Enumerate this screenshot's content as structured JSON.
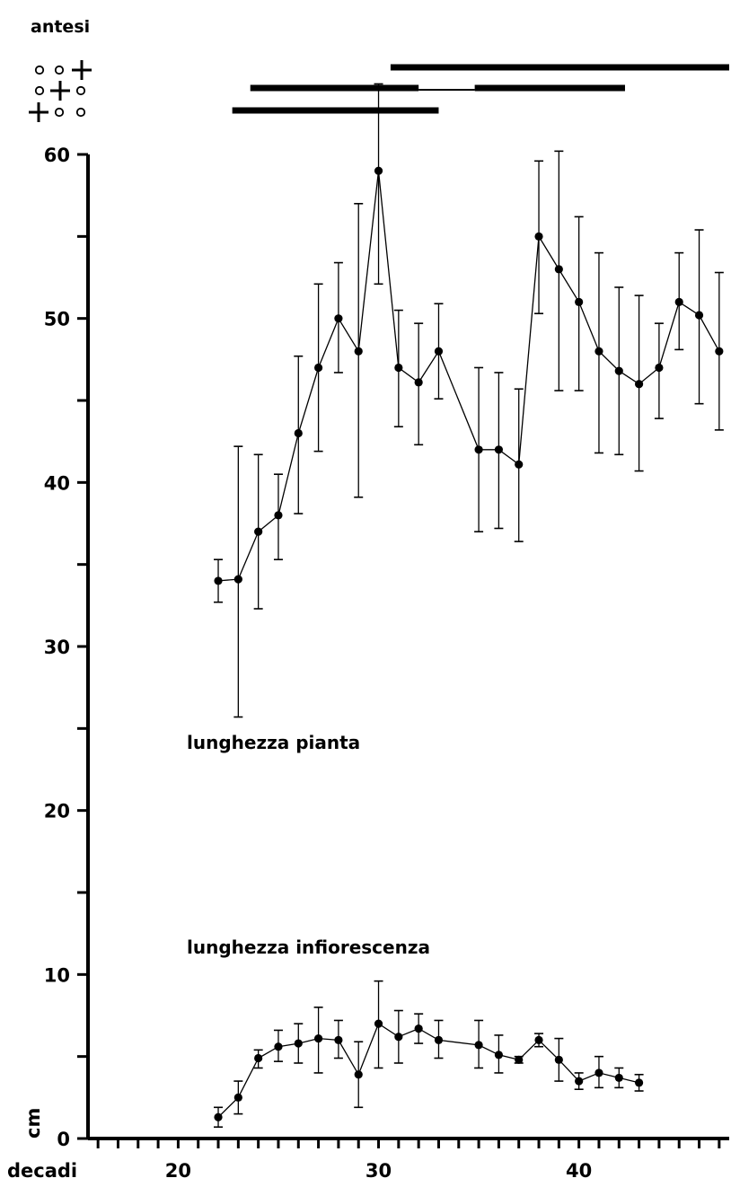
{
  "chart_data": {
    "type": "line",
    "title": "",
    "xlabel": "decadi",
    "ylabel": "cm",
    "corner_label": "antesi",
    "x_range": [
      15.5,
      47.5
    ],
    "y_range": [
      0,
      60
    ],
    "x_ticks": [
      20,
      30,
      40
    ],
    "y_ticks": [
      0,
      10,
      20,
      30,
      40,
      50,
      60
    ],
    "y_minor_step": 5,
    "x_minor_step": 1,
    "anthesis_symbols": [
      "o o+",
      "o+o",
      "+o o"
    ],
    "anthesis_periods": [
      {
        "rows": "top",
        "start": 30.6,
        "end": 47.5
      },
      {
        "rows": "middle",
        "start": 23.6,
        "end": 42.3,
        "gap": [
          32.0,
          34.8
        ]
      },
      {
        "rows": "bottom",
        "start": 22.7,
        "end": 33.0
      }
    ],
    "series": [
      {
        "name": "lunghezza pianta",
        "x": [
          22,
          23,
          24,
          25,
          26,
          27,
          28,
          29,
          30,
          31,
          32,
          33,
          35,
          36,
          37,
          38,
          39,
          40,
          41,
          42,
          43,
          44,
          45,
          46,
          47
        ],
        "y": [
          34,
          34.1,
          37,
          38,
          43,
          47,
          50,
          48,
          59,
          47,
          46.1,
          48,
          42,
          42,
          41.1,
          55,
          53,
          51,
          48,
          46.8,
          46,
          47,
          51,
          50.2,
          48
        ],
        "low": [
          32.7,
          25.7,
          32.3,
          35.3,
          38.1,
          41.9,
          46.7,
          39.1,
          52.1,
          43.4,
          42.3,
          45.1,
          37,
          37.2,
          36.4,
          50.3,
          45.6,
          45.6,
          41.8,
          41.7,
          40.7,
          43.9,
          48.1,
          44.8,
          43.2
        ],
        "high": [
          35.3,
          42.2,
          41.7,
          40.5,
          47.7,
          52.1,
          53.4,
          57,
          64.3,
          50.5,
          49.7,
          50.9,
          47,
          46.7,
          45.7,
          59.6,
          60.2,
          56.2,
          54,
          51.9,
          51.4,
          49.7,
          54,
          55.4,
          52.8
        ]
      },
      {
        "name": "lunghezza infiorescenza",
        "x": [
          22,
          23,
          24,
          25,
          26,
          27,
          28,
          29,
          30,
          31,
          32,
          33,
          35,
          36,
          37,
          38,
          39,
          40,
          41,
          42,
          43
        ],
        "y": [
          1.3,
          2.5,
          4.9,
          5.6,
          5.8,
          6.1,
          6.0,
          3.9,
          7.0,
          6.2,
          6.7,
          6.0,
          5.7,
          5.1,
          4.8,
          6.0,
          4.8,
          3.5,
          4.0,
          3.7,
          3.4
        ],
        "low": [
          0.7,
          1.5,
          4.3,
          4.7,
          4.6,
          4.0,
          4.9,
          1.9,
          4.3,
          4.6,
          5.8,
          4.9,
          4.3,
          4.0,
          4.6,
          5.6,
          3.5,
          3.0,
          3.1,
          3.1,
          2.9
        ],
        "high": [
          1.9,
          3.5,
          5.4,
          6.6,
          7.0,
          8.0,
          7.2,
          5.9,
          9.6,
          7.8,
          7.6,
          7.2,
          7.2,
          6.3,
          5.0,
          6.4,
          6.1,
          4.0,
          5.0,
          4.3,
          3.9
        ]
      }
    ]
  }
}
